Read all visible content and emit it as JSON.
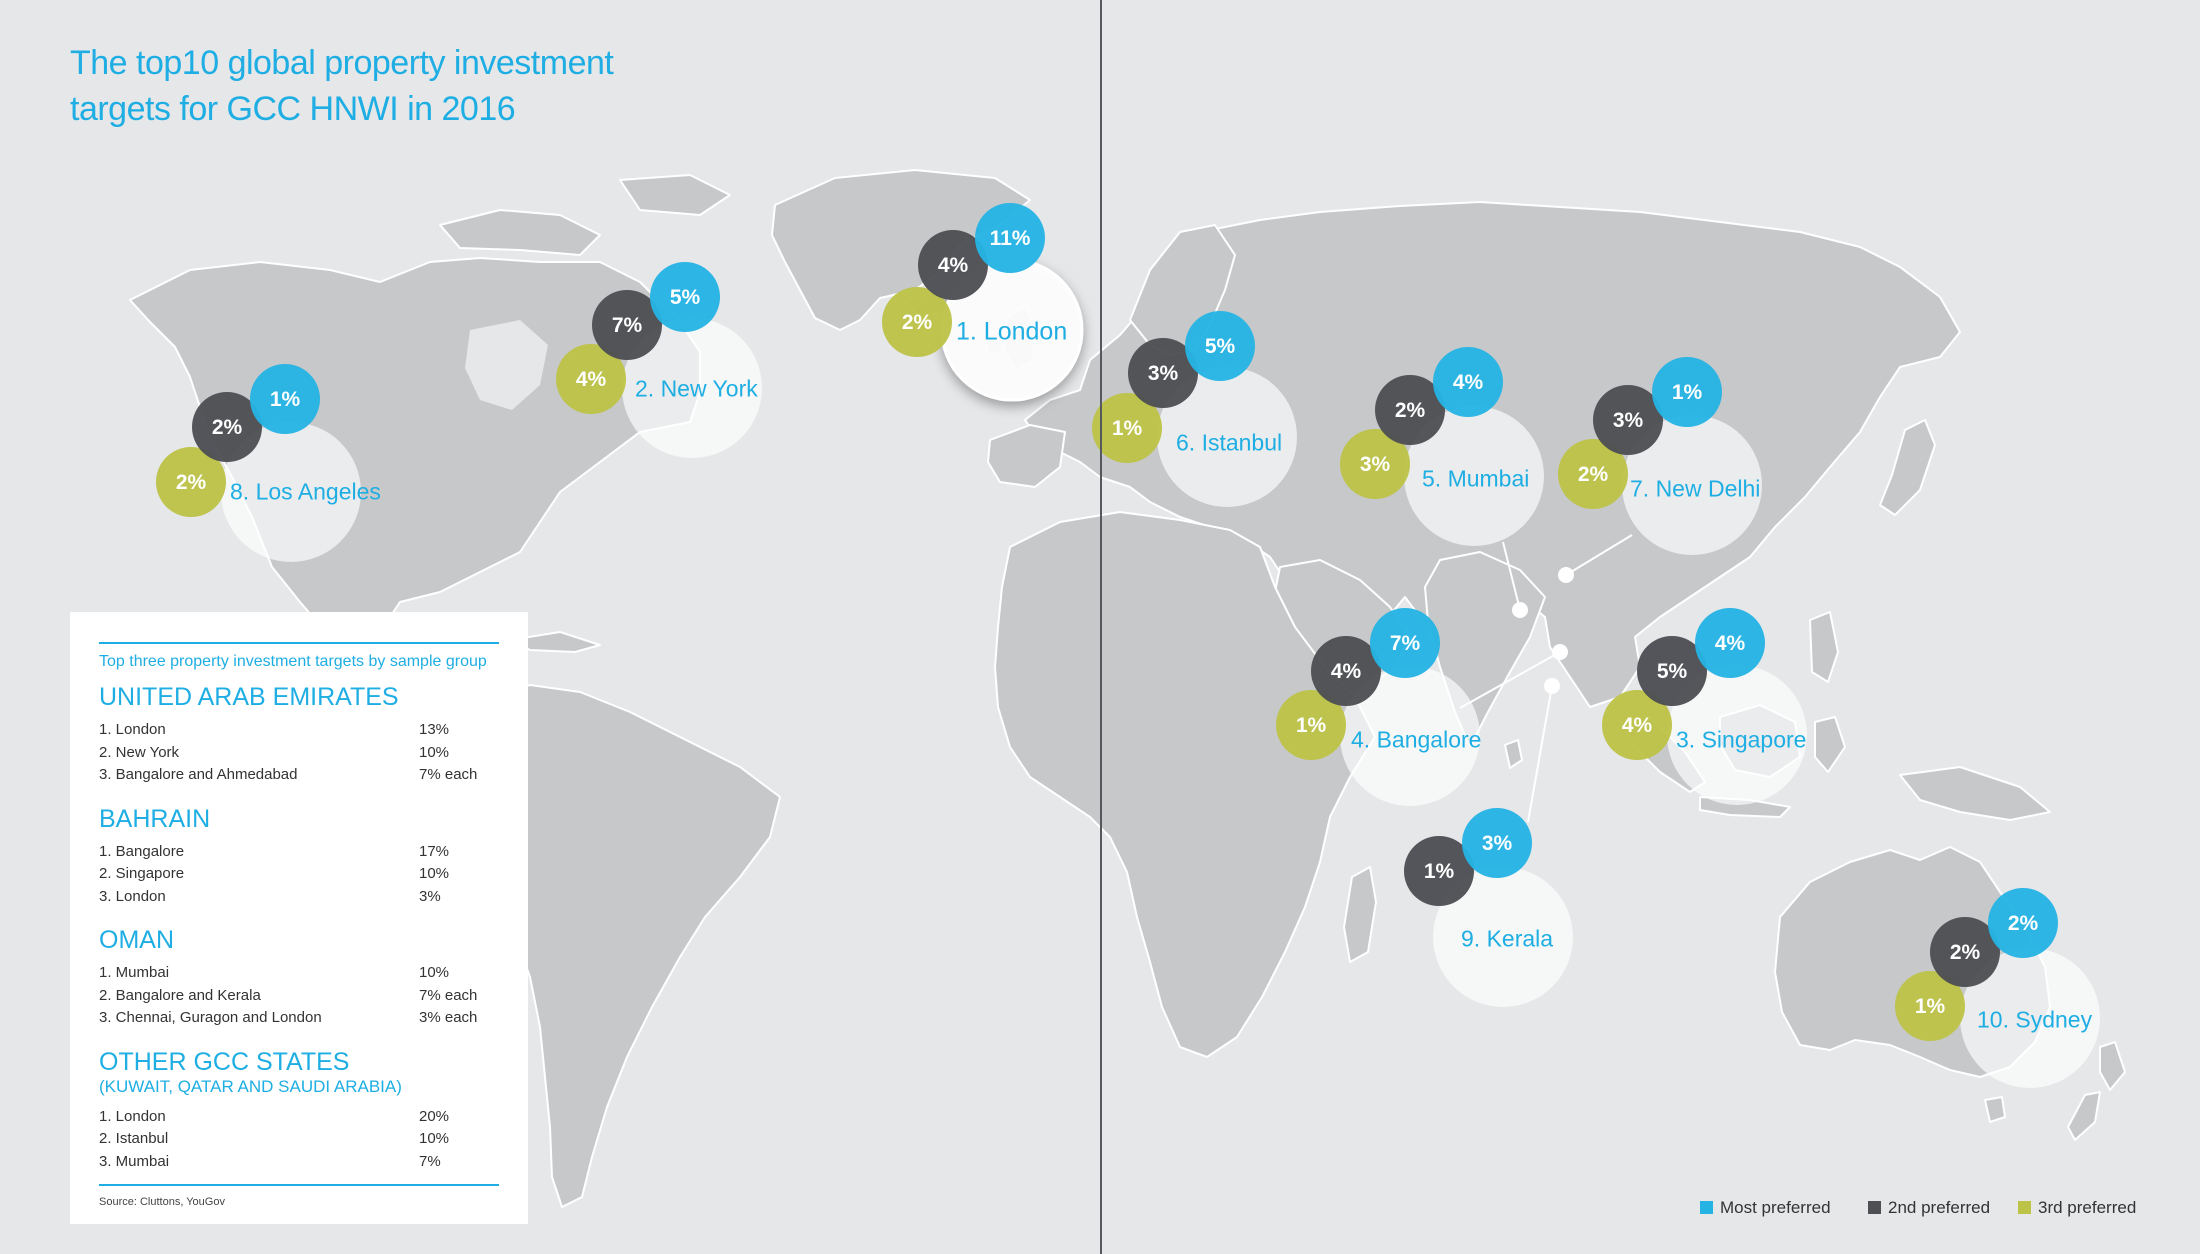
{
  "title": {
    "line1": "The top10 global property investment",
    "line2": "targets for GCC HNWI in 2016"
  },
  "colors": {
    "most": "#25b3e4",
    "second": "#4d4f53",
    "third": "#bcc347",
    "accent": "#1eaee3",
    "land": "#c7c8ca",
    "sea": "#e6e7e9"
  },
  "cities": [
    {
      "label": "1. London",
      "most": "11%",
      "second": "4%",
      "third": "2%"
    },
    {
      "label": "2. New York",
      "most": "5%",
      "second": "7%",
      "third": "4%"
    },
    {
      "label": "3. Singapore",
      "most": "4%",
      "second": "5%",
      "third": "4%"
    },
    {
      "label": "4. Bangalore",
      "most": "7%",
      "second": "4%",
      "third": "1%"
    },
    {
      "label": "5. Mumbai",
      "most": "4%",
      "second": "2%",
      "third": "3%"
    },
    {
      "label": "6. Istanbul",
      "most": "5%",
      "second": "3%",
      "third": "1%"
    },
    {
      "label": "7. New Delhi",
      "most": "1%",
      "second": "3%",
      "third": "2%"
    },
    {
      "label": "8. Los Angeles",
      "most": "1%",
      "second": "2%",
      "third": "2%"
    },
    {
      "label": "9. Kerala",
      "most": "3%",
      "second": "1%",
      "third": ""
    },
    {
      "label": "10. Sydney",
      "most": "2%",
      "second": "2%",
      "third": "1%"
    }
  ],
  "panel": {
    "heading": "Top three property investment targets by sample group",
    "groups": [
      {
        "name": "UNITED ARAB EMIRATES",
        "sub": "",
        "rows": [
          {
            "name": "1. London",
            "value": "13%"
          },
          {
            "name": "2. New York",
            "value": "10%"
          },
          {
            "name": "3. Bangalore and Ahmedabad",
            "value": "7% each"
          }
        ]
      },
      {
        "name": "BAHRAIN",
        "sub": "",
        "rows": [
          {
            "name": "1. Bangalore",
            "value": "17%"
          },
          {
            "name": "2. Singapore",
            "value": "10%"
          },
          {
            "name": "3. London",
            "value": "3%"
          }
        ]
      },
      {
        "name": "OMAN",
        "sub": "",
        "rows": [
          {
            "name": "1. Mumbai",
            "value": "10%"
          },
          {
            "name": "2. Bangalore and Kerala",
            "value": "7% each"
          },
          {
            "name": "3. Chennai, Guragon and London",
            "value": "3% each"
          }
        ]
      },
      {
        "name": "OTHER GCC STATES",
        "sub": "(KUWAIT, QATAR AND SAUDI ARABIA)",
        "rows": [
          {
            "name": "1. London",
            "value": "20%"
          },
          {
            "name": "2. Istanbul",
            "value": "10%"
          },
          {
            "name": "3. Mumbai",
            "value": "7%"
          }
        ]
      }
    ],
    "source": "Source: Cluttons, YouGov"
  },
  "legend": {
    "most": "Most preferred",
    "second": "2nd preferred",
    "third": "3rd preferred"
  }
}
